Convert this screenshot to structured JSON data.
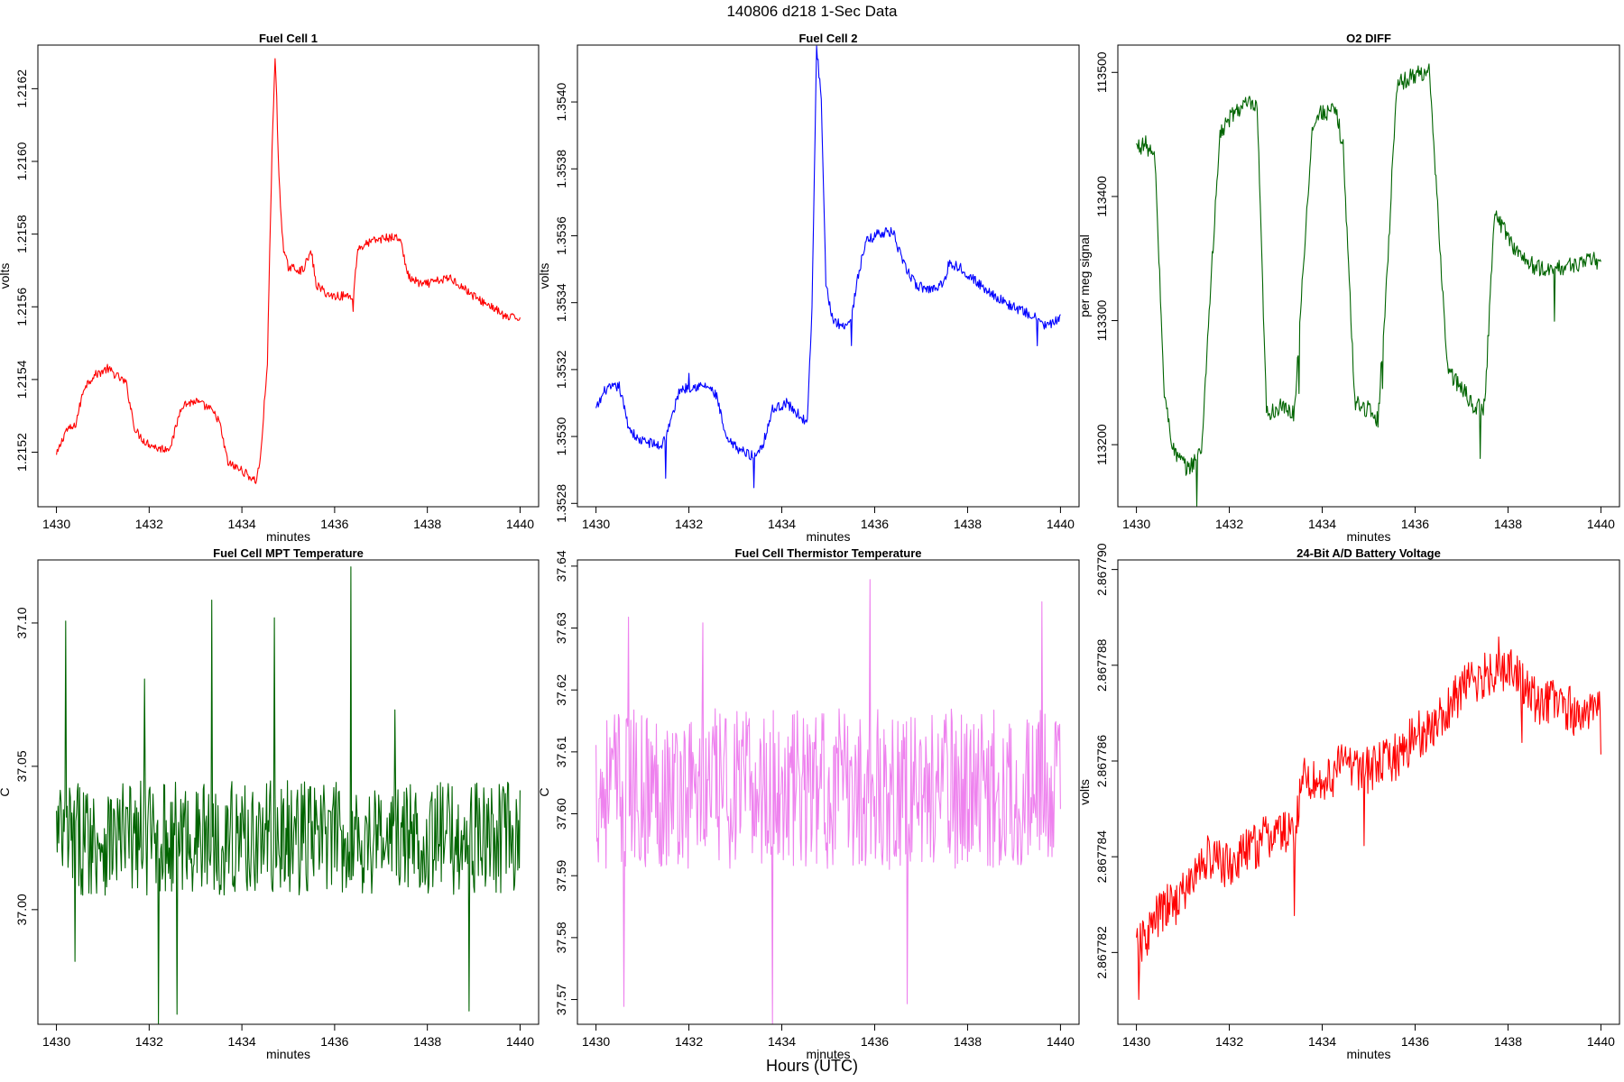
{
  "figure": {
    "title": "140806   d218   1-Sec Data",
    "xtitle": "Hours (UTC)"
  },
  "chart_data": [
    {
      "type": "line",
      "title": "Fuel Cell 1",
      "xlabel": "minutes",
      "ylabel": "volts",
      "color": "#ff0000",
      "xlim": [
        1429.6,
        1440.4
      ],
      "ylim": [
        1.21505,
        1.21632
      ],
      "xticks": [
        1430,
        1432,
        1434,
        1436,
        1438,
        1440
      ],
      "xtick_labels": [
        "1430",
        "1432",
        "1434",
        "1436",
        "1438",
        "1440"
      ],
      "yticks": [
        1.2152,
        1.2154,
        1.2156,
        1.2158,
        1.216,
        1.2162
      ],
      "ytick_labels": [
        "1.2152",
        "1.2154",
        "1.2156",
        "1.2158",
        "1.2160",
        "1.2162"
      ],
      "noise": 1.2e-05,
      "points": [
        [
          1430.0,
          1.21519
        ],
        [
          1430.2,
          1.21526
        ],
        [
          1430.4,
          1.21527
        ],
        [
          1430.6,
          1.21538
        ],
        [
          1430.8,
          1.21541
        ],
        [
          1431.1,
          1.21543
        ],
        [
          1431.3,
          1.21541
        ],
        [
          1431.5,
          1.21539
        ],
        [
          1431.7,
          1.21526
        ],
        [
          1431.9,
          1.21523
        ],
        [
          1432.2,
          1.21521
        ],
        [
          1432.4,
          1.21521
        ],
        [
          1432.5,
          1.21523
        ],
        [
          1432.7,
          1.21533
        ],
        [
          1433.0,
          1.21534
        ],
        [
          1433.3,
          1.21532
        ],
        [
          1433.5,
          1.21529
        ],
        [
          1433.7,
          1.21517
        ],
        [
          1434.0,
          1.21515
        ],
        [
          1434.3,
          1.21512
        ],
        [
          1434.4,
          1.21518
        ],
        [
          1434.55,
          1.21545
        ],
        [
          1434.65,
          1.21603
        ],
        [
          1434.72,
          1.2163
        ],
        [
          1434.8,
          1.21595
        ],
        [
          1434.9,
          1.21575
        ],
        [
          1435.0,
          1.21571
        ],
        [
          1435.3,
          1.2157
        ],
        [
          1435.5,
          1.21575
        ],
        [
          1435.6,
          1.21566
        ],
        [
          1435.9,
          1.21563
        ],
        [
          1436.2,
          1.21563
        ],
        [
          1436.4,
          1.21563
        ],
        [
          1436.5,
          1.21576
        ],
        [
          1436.8,
          1.21578
        ],
        [
          1437.1,
          1.21579
        ],
        [
          1437.4,
          1.21579
        ],
        [
          1437.6,
          1.21568
        ],
        [
          1437.9,
          1.21566
        ],
        [
          1438.2,
          1.21567
        ],
        [
          1438.5,
          1.21568
        ],
        [
          1438.8,
          1.21565
        ],
        [
          1439.1,
          1.21562
        ],
        [
          1439.4,
          1.2156
        ],
        [
          1439.7,
          1.21557
        ],
        [
          1440.0,
          1.21557
        ]
      ],
      "spikes": [
        [
          1436.4,
          -5e-05
        ]
      ]
    },
    {
      "type": "line",
      "title": "Fuel Cell 2",
      "xlabel": "minutes",
      "ylabel": "volts",
      "color": "#0000ff",
      "xlim": [
        1429.6,
        1440.4
      ],
      "ylim": [
        1.35279,
        1.35417
      ],
      "xticks": [
        1430,
        1432,
        1434,
        1436,
        1438,
        1440
      ],
      "xtick_labels": [
        "1430",
        "1432",
        "1434",
        "1436",
        "1438",
        "1440"
      ],
      "yticks": [
        1.3528,
        1.353,
        1.3532,
        1.3534,
        1.3536,
        1.3538,
        1.354
      ],
      "ytick_labels": [
        "1.3528",
        "1.3530",
        "1.3532",
        "1.3534",
        "1.3536",
        "1.3538",
        "1.3540"
      ],
      "noise": 1.5e-05,
      "points": [
        [
          1430.0,
          1.35308
        ],
        [
          1430.2,
          1.35314
        ],
        [
          1430.5,
          1.35315
        ],
        [
          1430.7,
          1.35303
        ],
        [
          1430.9,
          1.35299
        ],
        [
          1431.2,
          1.35298
        ],
        [
          1431.4,
          1.35297
        ],
        [
          1431.6,
          1.35304
        ],
        [
          1431.8,
          1.35314
        ],
        [
          1432.1,
          1.35315
        ],
        [
          1432.4,
          1.35315
        ],
        [
          1432.6,
          1.35312
        ],
        [
          1432.8,
          1.35299
        ],
        [
          1433.1,
          1.35296
        ],
        [
          1433.4,
          1.35294
        ],
        [
          1433.6,
          1.35298
        ],
        [
          1433.8,
          1.35308
        ],
        [
          1434.1,
          1.3531
        ],
        [
          1434.4,
          1.35306
        ],
        [
          1434.55,
          1.35304
        ],
        [
          1434.65,
          1.35338
        ],
        [
          1434.75,
          1.35417
        ],
        [
          1434.85,
          1.354
        ],
        [
          1434.95,
          1.35345
        ],
        [
          1435.1,
          1.35335
        ],
        [
          1435.3,
          1.35333
        ],
        [
          1435.5,
          1.35335
        ],
        [
          1435.6,
          1.35345
        ],
        [
          1435.8,
          1.35358
        ],
        [
          1436.1,
          1.35361
        ],
        [
          1436.4,
          1.35361
        ],
        [
          1436.6,
          1.35352
        ],
        [
          1436.9,
          1.35345
        ],
        [
          1437.2,
          1.35344
        ],
        [
          1437.5,
          1.35346
        ],
        [
          1437.6,
          1.35352
        ],
        [
          1437.9,
          1.3535
        ],
        [
          1438.2,
          1.35346
        ],
        [
          1438.5,
          1.35343
        ],
        [
          1438.8,
          1.3534
        ],
        [
          1439.1,
          1.35338
        ],
        [
          1439.4,
          1.35336
        ],
        [
          1439.7,
          1.35333
        ],
        [
          1440.0,
          1.35335
        ]
      ],
      "spikes": [
        [
          1431.5,
          -0.00013
        ],
        [
          1432.0,
          5e-05
        ],
        [
          1433.4,
          -0.0001
        ],
        [
          1435.5,
          -8e-05
        ],
        [
          1439.5,
          -8e-05
        ]
      ]
    },
    {
      "type": "line",
      "title": "O2 DIFF",
      "xlabel": "minutes",
      "ylabel": "per meg signal",
      "color": "#006400",
      "xlim": [
        1429.6,
        1440.4
      ],
      "ylim": [
        113150,
        113522
      ],
      "xticks": [
        1430,
        1432,
        1434,
        1436,
        1438,
        1440
      ],
      "xtick_labels": [
        "1430",
        "1432",
        "1434",
        "1436",
        "1438",
        "1440"
      ],
      "yticks": [
        113200,
        113300,
        113400,
        113500
      ],
      "ytick_labels": [
        "113200",
        "113300",
        "113400",
        "113500"
      ],
      "noise": 7,
      "points": [
        [
          1430.0,
          113440
        ],
        [
          1430.2,
          113442
        ],
        [
          1430.4,
          113430
        ],
        [
          1430.6,
          113240
        ],
        [
          1430.8,
          113195
        ],
        [
          1431.1,
          113180
        ],
        [
          1431.4,
          113195
        ],
        [
          1431.6,
          113330
        ],
        [
          1431.8,
          113450
        ],
        [
          1432.1,
          113468
        ],
        [
          1432.4,
          113475
        ],
        [
          1432.6,
          113470
        ],
        [
          1432.8,
          113225
        ],
        [
          1433.1,
          113230
        ],
        [
          1433.4,
          113225
        ],
        [
          1433.6,
          113350
        ],
        [
          1433.8,
          113460
        ],
        [
          1434.0,
          113468
        ],
        [
          1434.3,
          113468
        ],
        [
          1434.45,
          113440
        ],
        [
          1434.7,
          113235
        ],
        [
          1435.0,
          113228
        ],
        [
          1435.2,
          113220
        ],
        [
          1435.4,
          113340
        ],
        [
          1435.6,
          113490
        ],
        [
          1436.0,
          113498
        ],
        [
          1436.3,
          113502
        ],
        [
          1436.5,
          113380
        ],
        [
          1436.7,
          113260
        ],
        [
          1437.0,
          113245
        ],
        [
          1437.3,
          113230
        ],
        [
          1437.5,
          113230
        ],
        [
          1437.7,
          113385
        ],
        [
          1437.9,
          113375
        ],
        [
          1438.2,
          113355
        ],
        [
          1438.5,
          113345
        ],
        [
          1438.8,
          113340
        ],
        [
          1439.1,
          113342
        ],
        [
          1439.4,
          113345
        ],
        [
          1439.7,
          113348
        ],
        [
          1440.0,
          113348
        ]
      ],
      "spikes": [
        [
          1431.3,
          -40
        ],
        [
          1433.5,
          -45
        ],
        [
          1435.3,
          -40
        ],
        [
          1437.4,
          -45
        ],
        [
          1439.0,
          -35
        ]
      ]
    },
    {
      "type": "line",
      "title": "Fuel Cell MPT Temperature",
      "xlabel": "minutes",
      "ylabel": "C",
      "color": "#006400",
      "xlim": [
        1429.6,
        1440.4
      ],
      "ylim": [
        36.96,
        37.122
      ],
      "xticks": [
        1430,
        1432,
        1434,
        1436,
        1438,
        1440
      ],
      "xtick_labels": [
        "1430",
        "1432",
        "1434",
        "1436",
        "1438",
        "1440"
      ],
      "yticks": [
        37.0,
        37.05,
        37.1
      ],
      "ytick_labels": [
        "37.00",
        "37.05",
        "37.10"
      ],
      "noise": 0.02,
      "points": [
        [
          1430.0,
          37.025
        ],
        [
          1435.0,
          37.025
        ],
        [
          1440.0,
          37.025
        ]
      ],
      "spikes": [
        [
          1430.2,
          0.066
        ],
        [
          1431.9,
          0.048
        ],
        [
          1432.2,
          -0.062
        ],
        [
          1433.35,
          0.087
        ],
        [
          1434.7,
          0.065
        ],
        [
          1436.35,
          0.086
        ],
        [
          1438.9,
          -0.05
        ],
        [
          1437.3,
          0.03
        ],
        [
          1430.4,
          -0.046
        ],
        [
          1432.6,
          -0.05
        ]
      ]
    },
    {
      "type": "line",
      "title": "Fuel Cell Thermistor Temperature",
      "xlabel": "minutes",
      "ylabel": "C",
      "color": "#ee82ee",
      "xlim": [
        1429.6,
        1440.4
      ],
      "ylim": [
        37.566,
        37.641
      ],
      "xticks": [
        1430,
        1432,
        1434,
        1436,
        1438,
        1440
      ],
      "xtick_labels": [
        "1430",
        "1432",
        "1434",
        "1436",
        "1438",
        "1440"
      ],
      "yticks": [
        37.57,
        37.58,
        37.59,
        37.6,
        37.61,
        37.62,
        37.63,
        37.64
      ],
      "ytick_labels": [
        "37.57",
        "37.58",
        "37.59",
        "37.60",
        "37.61",
        "37.62",
        "37.63",
        "37.64"
      ],
      "noise": 0.013,
      "points": [
        [
          1430.0,
          37.604
        ],
        [
          1435.0,
          37.604
        ],
        [
          1440.0,
          37.604
        ]
      ],
      "spikes": [
        [
          1430.6,
          -0.036
        ],
        [
          1430.7,
          0.033
        ],
        [
          1433.8,
          -0.03
        ],
        [
          1435.9,
          0.034
        ],
        [
          1436.7,
          -0.031
        ],
        [
          1432.3,
          0.025
        ],
        [
          1439.6,
          0.027
        ]
      ]
    },
    {
      "type": "line",
      "title": "24-Bit A/D Battery Voltage",
      "xlabel": "minutes",
      "ylabel": "volts",
      "color": "#ff0000",
      "xlim": [
        1429.6,
        1440.4
      ],
      "ylim": [
        2.8677805,
        2.8677902
      ],
      "xticks": [
        1430,
        1432,
        1434,
        1436,
        1438,
        1440
      ],
      "xtick_labels": [
        "1430",
        "1432",
        "1434",
        "1436",
        "1438",
        "1440"
      ],
      "yticks": [
        2.867782,
        2.867784,
        2.867786,
        2.867788,
        2.86779
      ],
      "ytick_labels": [
        "2.867782",
        "2.867784",
        "2.867786",
        "2.867788",
        "2.867790"
      ],
      "noise": 5e-07,
      "points": [
        [
          1430.0,
          2.867782
        ],
        [
          1430.5,
          2.8677828
        ],
        [
          1431.0,
          2.8677832
        ],
        [
          1431.5,
          2.867784
        ],
        [
          1432.0,
          2.8677838
        ],
        [
          1432.5,
          2.8677842
        ],
        [
          1433.0,
          2.8677845
        ],
        [
          1433.4,
          2.8677845
        ],
        [
          1433.6,
          2.8677857
        ],
        [
          1434.0,
          2.8677855
        ],
        [
          1434.5,
          2.867786
        ],
        [
          1435.0,
          2.8677858
        ],
        [
          1435.5,
          2.867786
        ],
        [
          1436.0,
          2.8677865
        ],
        [
          1436.5,
          2.8677868
        ],
        [
          1437.0,
          2.8677875
        ],
        [
          1437.5,
          2.8677878
        ],
        [
          1438.0,
          2.867788
        ],
        [
          1438.5,
          2.8677873
        ],
        [
          1439.0,
          2.8677872
        ],
        [
          1439.5,
          2.867787
        ],
        [
          1440.0,
          2.867787
        ]
      ],
      "spikes": [
        [
          1430.05,
          -1.2e-06
        ],
        [
          1433.4,
          -1.6e-06
        ],
        [
          1434.9,
          -1.2e-06
        ],
        [
          1437.8,
          1e-06
        ],
        [
          1438.3,
          -1.5e-06
        ],
        [
          1440.0,
          -1.2e-06
        ]
      ]
    }
  ]
}
